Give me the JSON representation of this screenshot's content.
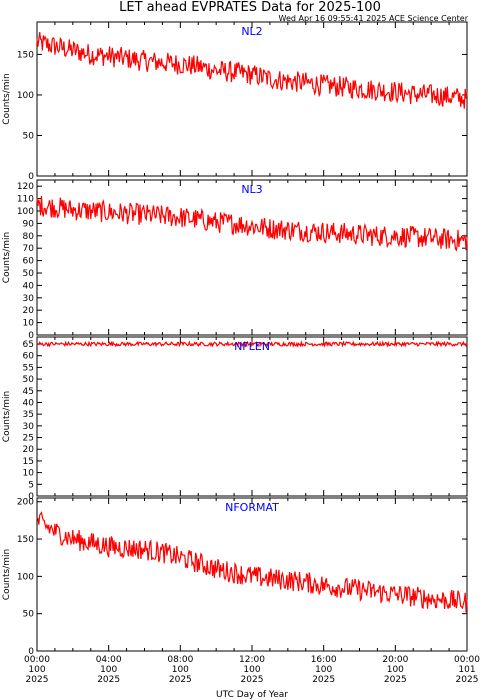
{
  "title": "LET ahead EVPRATES Data for 2025-100",
  "timestamp": "Wed Apr 16 09:55:41 2025 ACE Science Center",
  "xlabel": "UTC Day of Year",
  "colors": {
    "series": "#ff0000",
    "panel_label": "#0000ff",
    "axes": "#000000"
  },
  "chart_data": {
    "type": "line",
    "x_unit": "hours since 00:00 UTC, day 100 of 2025",
    "xlim": [
      0,
      24
    ],
    "x_ticks": [
      {
        "hour": 0,
        "time": "00:00",
        "doy": "100",
        "year": "2025"
      },
      {
        "hour": 4,
        "time": "04:00",
        "doy": "100",
        "year": "2025"
      },
      {
        "hour": 8,
        "time": "08:00",
        "doy": "100",
        "year": "2025"
      },
      {
        "hour": 12,
        "time": "12:00",
        "doy": "100",
        "year": "2025"
      },
      {
        "hour": 16,
        "time": "16:00",
        "doy": "100",
        "year": "2025"
      },
      {
        "hour": 20,
        "time": "20:00",
        "doy": "100",
        "year": "2025"
      },
      {
        "hour": 24,
        "time": "00:00",
        "doy": "101",
        "year": "2025"
      }
    ],
    "panels": [
      {
        "name": "NL2",
        "ylabel": "Counts/min",
        "ylim": [
          0,
          190
        ],
        "y_ticks": [
          "0",
          "50",
          "100",
          "150"
        ],
        "x": [
          0,
          1,
          2,
          3,
          4,
          5,
          6,
          7,
          8,
          9,
          10,
          11,
          12,
          13,
          14,
          15,
          16,
          17,
          18,
          19,
          20,
          21,
          22,
          23,
          24
        ],
        "y": [
          165,
          160,
          155,
          150,
          148,
          145,
          142,
          140,
          138,
          135,
          130,
          128,
          125,
          120,
          117,
          115,
          112,
          110,
          108,
          106,
          104,
          101,
          100,
          98,
          95
        ]
      },
      {
        "name": "NL3",
        "ylabel": "Counts/min",
        "ylim": [
          0,
          125
        ],
        "y_ticks": [
          "0",
          "10",
          "20",
          "30",
          "40",
          "50",
          "60",
          "70",
          "80",
          "90",
          "100",
          "110",
          "120"
        ],
        "x": [
          0,
          1,
          2,
          3,
          4,
          5,
          6,
          7,
          8,
          9,
          10,
          11,
          12,
          13,
          14,
          15,
          16,
          17,
          18,
          19,
          20,
          21,
          22,
          23,
          24
        ],
        "y": [
          105,
          103,
          101,
          100,
          99,
          98,
          97,
          96,
          95,
          93,
          91,
          90,
          88,
          86,
          85,
          84,
          83,
          82,
          81,
          80,
          80,
          79,
          78,
          77,
          76
        ]
      },
      {
        "name": "NFLEN",
        "ylabel": "Counts/min",
        "ylim": [
          0,
          68
        ],
        "y_ticks": [
          "0",
          "5",
          "10",
          "15",
          "20",
          "25",
          "30",
          "35",
          "40",
          "45",
          "50",
          "55",
          "60",
          "65"
        ],
        "x": [
          0,
          4,
          8,
          12,
          16,
          20,
          24
        ],
        "y": [
          65,
          65,
          65,
          65,
          65,
          65,
          65
        ]
      },
      {
        "name": "NFORMAT",
        "ylabel": "Counts/min",
        "ylim": [
          0,
          205
        ],
        "y_ticks": [
          "0",
          "50",
          "100",
          "150",
          "200"
        ],
        "x": [
          0,
          1,
          2,
          3,
          4,
          5,
          6,
          7,
          8,
          9,
          10,
          11,
          12,
          13,
          14,
          15,
          16,
          17,
          18,
          19,
          20,
          21,
          22,
          23,
          24
        ],
        "y": [
          175,
          160,
          150,
          145,
          140,
          138,
          136,
          132,
          125,
          118,
          110,
          105,
          100,
          97,
          95,
          92,
          88,
          85,
          82,
          79,
          76,
          73,
          70,
          68,
          65
        ]
      }
    ]
  }
}
